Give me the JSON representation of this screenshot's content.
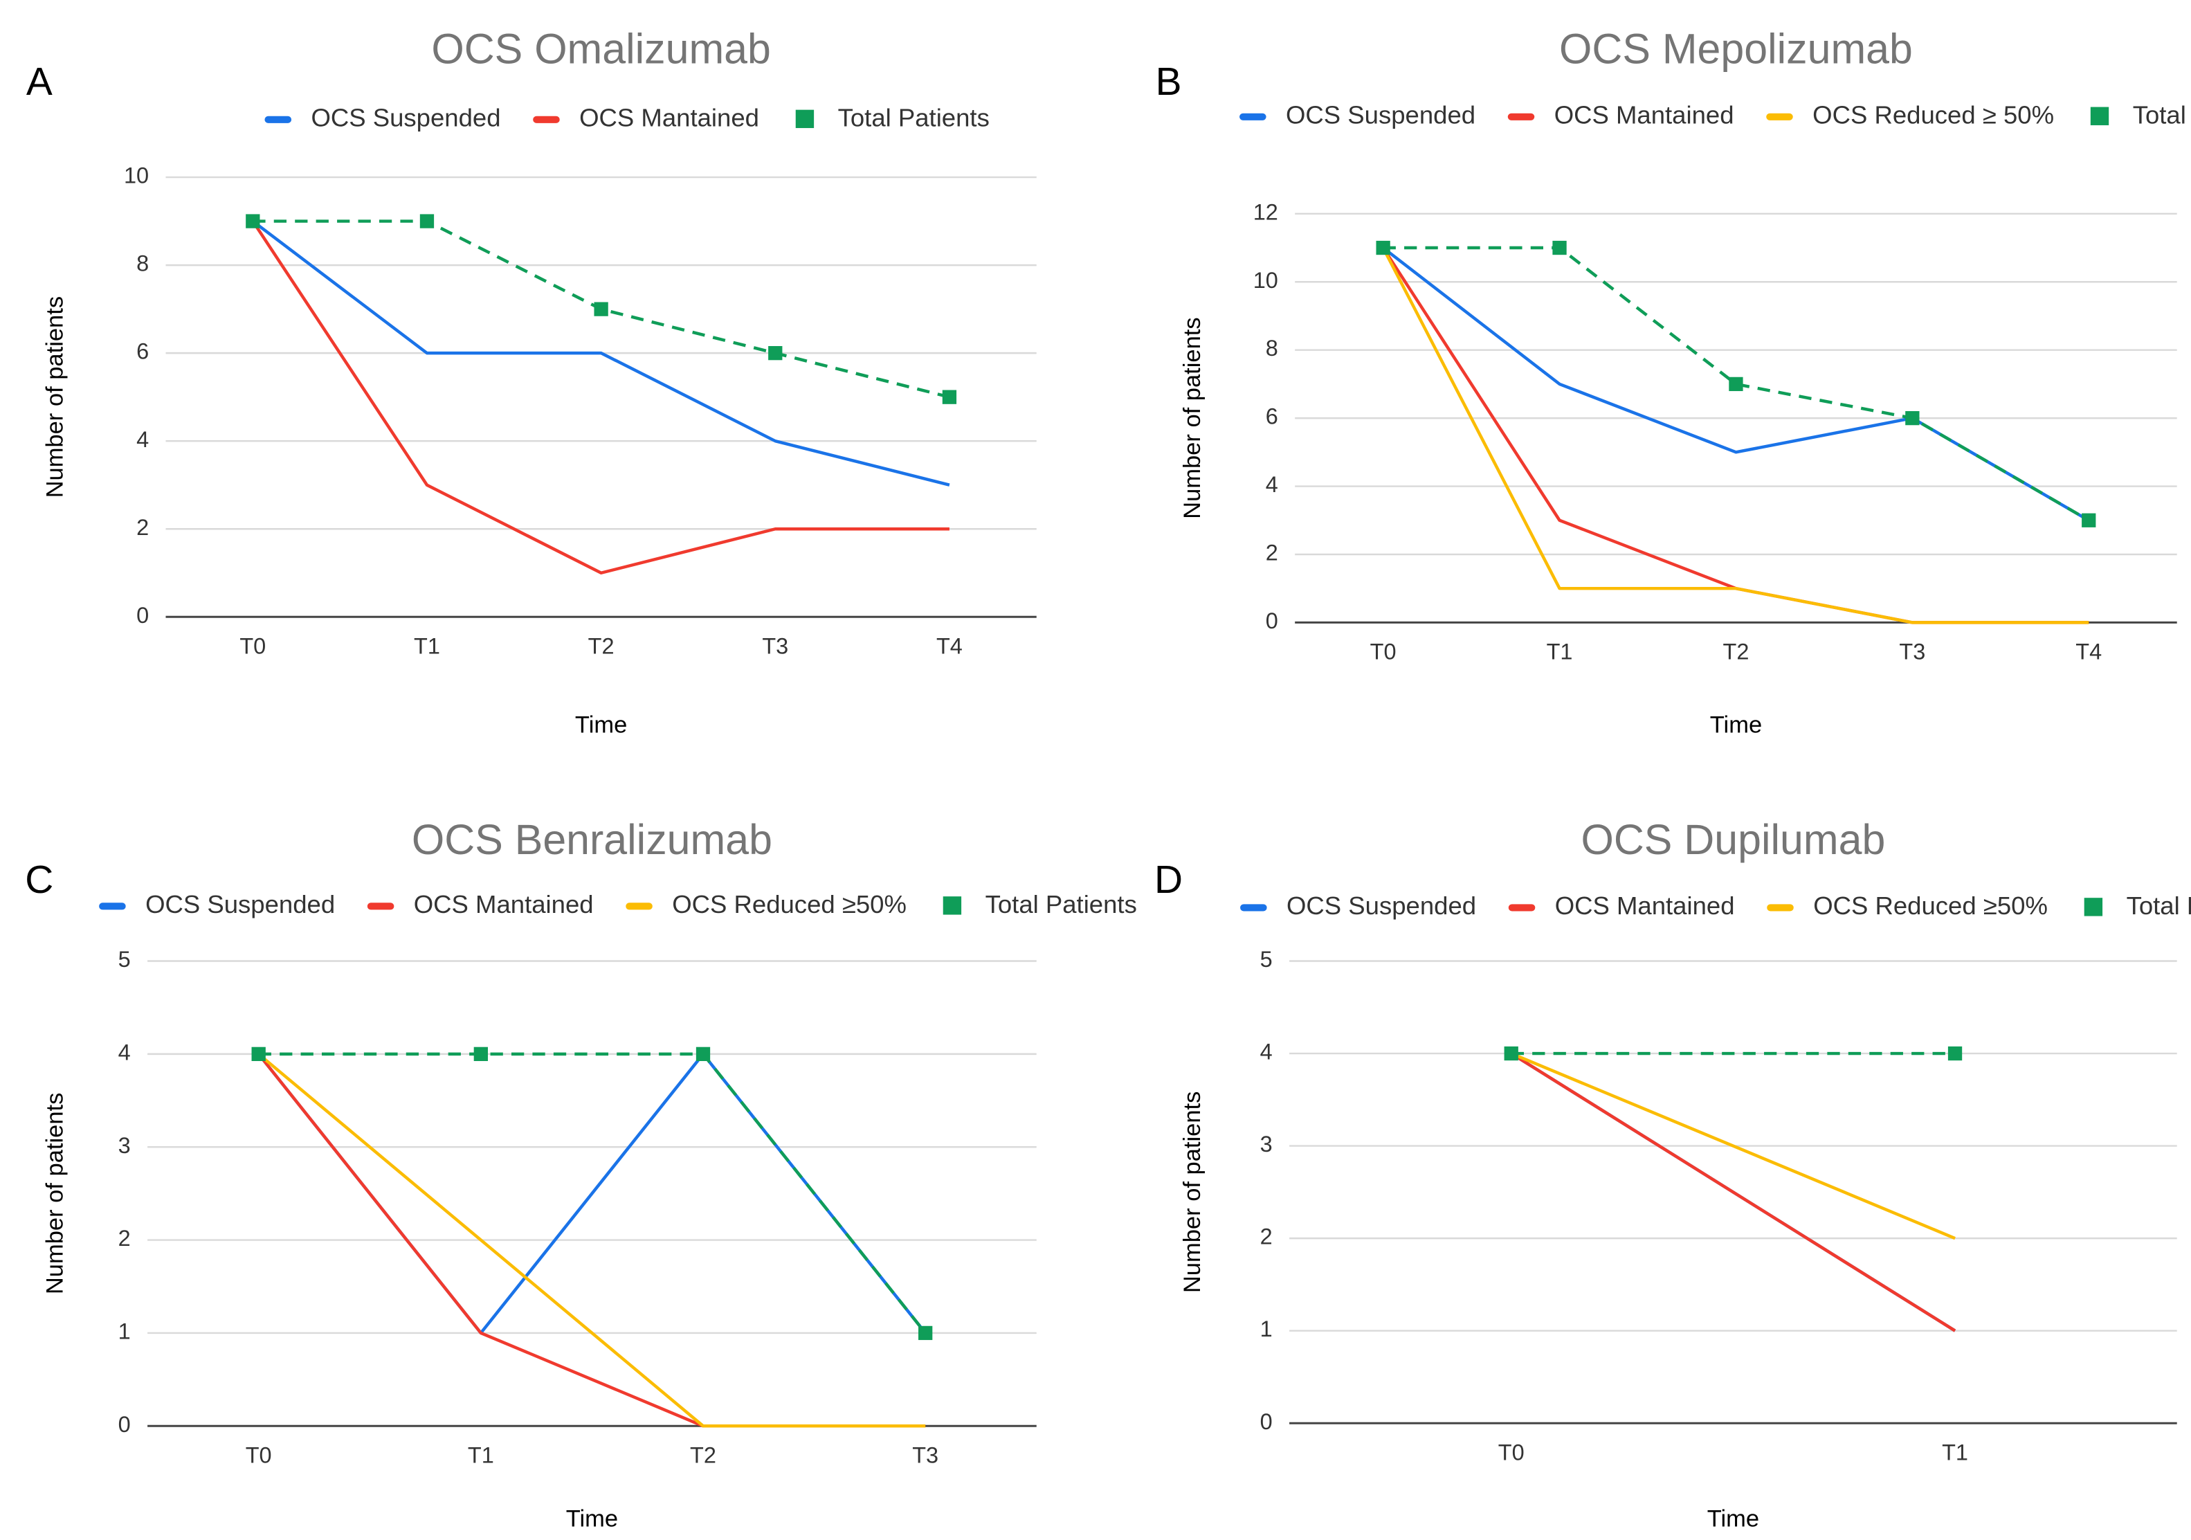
{
  "chart_data": [
    {
      "type": "line",
      "label": "A",
      "title": "OCS Omalizumab",
      "x_label": "Time",
      "y_label": "Number of patients",
      "categories": [
        "T0",
        "T1",
        "T2",
        "T3",
        "T4"
      ],
      "ylim": [
        0,
        10
      ],
      "yticks": [
        0,
        2,
        4,
        6,
        8,
        10
      ],
      "grid": true,
      "series": [
        {
          "name": "OCS Suspended",
          "color": "#1a73e8",
          "values": [
            9,
            6,
            6,
            4,
            3
          ]
        },
        {
          "name": "OCS Mantained",
          "color": "#f03a2e",
          "values": [
            9,
            3,
            1,
            2,
            2
          ]
        },
        {
          "name": "Total Patients",
          "color": "#0f9d58",
          "line_style": "dashed",
          "marker": "square",
          "values": [
            9,
            9,
            7,
            6,
            5
          ]
        }
      ]
    },
    {
      "type": "line",
      "label": "B",
      "title": "OCS Mepolizumab",
      "x_label": "Time",
      "y_label": "Number of patients",
      "categories": [
        "T0",
        "T1",
        "T2",
        "T3",
        "T4"
      ],
      "ylim": [
        0,
        12
      ],
      "yticks": [
        0,
        2,
        4,
        6,
        8,
        10,
        12
      ],
      "grid": true,
      "series": [
        {
          "name": "OCS Suspended",
          "color": "#1a73e8",
          "values": [
            11,
            7,
            5,
            6,
            3
          ]
        },
        {
          "name": "OCS Mantained",
          "color": "#f03a2e",
          "values": [
            11,
            3,
            1,
            0,
            0
          ]
        },
        {
          "name": "OCS Reduced ≥ 50%",
          "color": "#fbbc04",
          "values": [
            11,
            1,
            1,
            0,
            0
          ]
        },
        {
          "name": "Total Patients",
          "color": "#0f9d58",
          "line_style": "dashed",
          "marker": "square",
          "values": [
            11,
            11,
            7,
            6,
            3
          ]
        }
      ]
    },
    {
      "type": "line",
      "label": "C",
      "title": "OCS Benralizumab",
      "x_label": "Time",
      "y_label": "Number of patients",
      "categories": [
        "T0",
        "T1",
        "T2",
        "T3"
      ],
      "ylim": [
        0,
        5
      ],
      "yticks": [
        0,
        1,
        2,
        3,
        4,
        5
      ],
      "grid": true,
      "series": [
        {
          "name": "OCS Suspended",
          "color": "#1a73e8",
          "values": [
            4,
            1,
            4,
            1
          ]
        },
        {
          "name": "OCS Mantained",
          "color": "#f03a2e",
          "values": [
            4,
            1,
            0,
            0
          ]
        },
        {
          "name": "OCS Reduced ≥50%",
          "color": "#fbbc04",
          "values": [
            4,
            2,
            0,
            0
          ]
        },
        {
          "name": "Total Patients",
          "color": "#0f9d58",
          "line_style": "dashed",
          "marker": "square",
          "values": [
            4,
            4,
            4,
            1
          ]
        }
      ]
    },
    {
      "type": "line",
      "label": "D",
      "title": "OCS Dupilumab",
      "x_label": "Time",
      "y_label": "Number of patients",
      "categories": [
        "T0",
        "T1"
      ],
      "ylim": [
        0,
        5
      ],
      "yticks": [
        0,
        1,
        2,
        3,
        4,
        5
      ],
      "grid": true,
      "series": [
        {
          "name": "OCS Suspended",
          "color": "#1a73e8",
          "values": [
            4,
            1
          ]
        },
        {
          "name": "OCS Mantained",
          "color": "#f03a2e",
          "values": [
            4,
            1
          ]
        },
        {
          "name": "OCS Reduced ≥50%",
          "color": "#fbbc04",
          "values": [
            4,
            2
          ]
        },
        {
          "name": "Total Patients",
          "color": "#0f9d58",
          "line_style": "dashed",
          "marker": "square",
          "values": [
            4,
            4
          ]
        }
      ]
    }
  ]
}
